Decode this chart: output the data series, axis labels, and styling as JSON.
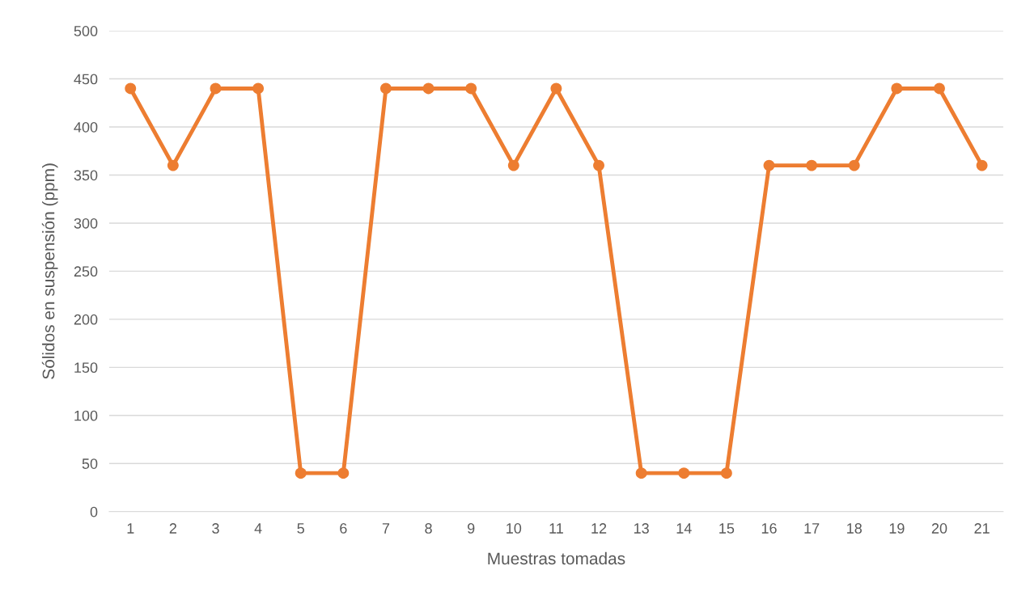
{
  "chart_data": {
    "type": "line",
    "xlabel": "Muestras tomadas",
    "ylabel": "Sólidos en suspensión (ppm)",
    "categories": [
      "1",
      "2",
      "3",
      "4",
      "5",
      "6",
      "7",
      "8",
      "9",
      "10",
      "11",
      "12",
      "13",
      "14",
      "15",
      "16",
      "17",
      "18",
      "19",
      "20",
      "21"
    ],
    "series": [
      {
        "color": "#ed7d31",
        "values": [
          440,
          360,
          440,
          440,
          40,
          40,
          440,
          440,
          440,
          360,
          440,
          360,
          40,
          40,
          40,
          360,
          360,
          360,
          440,
          440,
          360
        ]
      }
    ],
    "ylim": [
      0,
      500
    ],
    "yticks": [
      0,
      50,
      100,
      150,
      200,
      250,
      300,
      350,
      400,
      450,
      500
    ],
    "grid": "y",
    "marker": "circle",
    "line_style": "solid"
  }
}
